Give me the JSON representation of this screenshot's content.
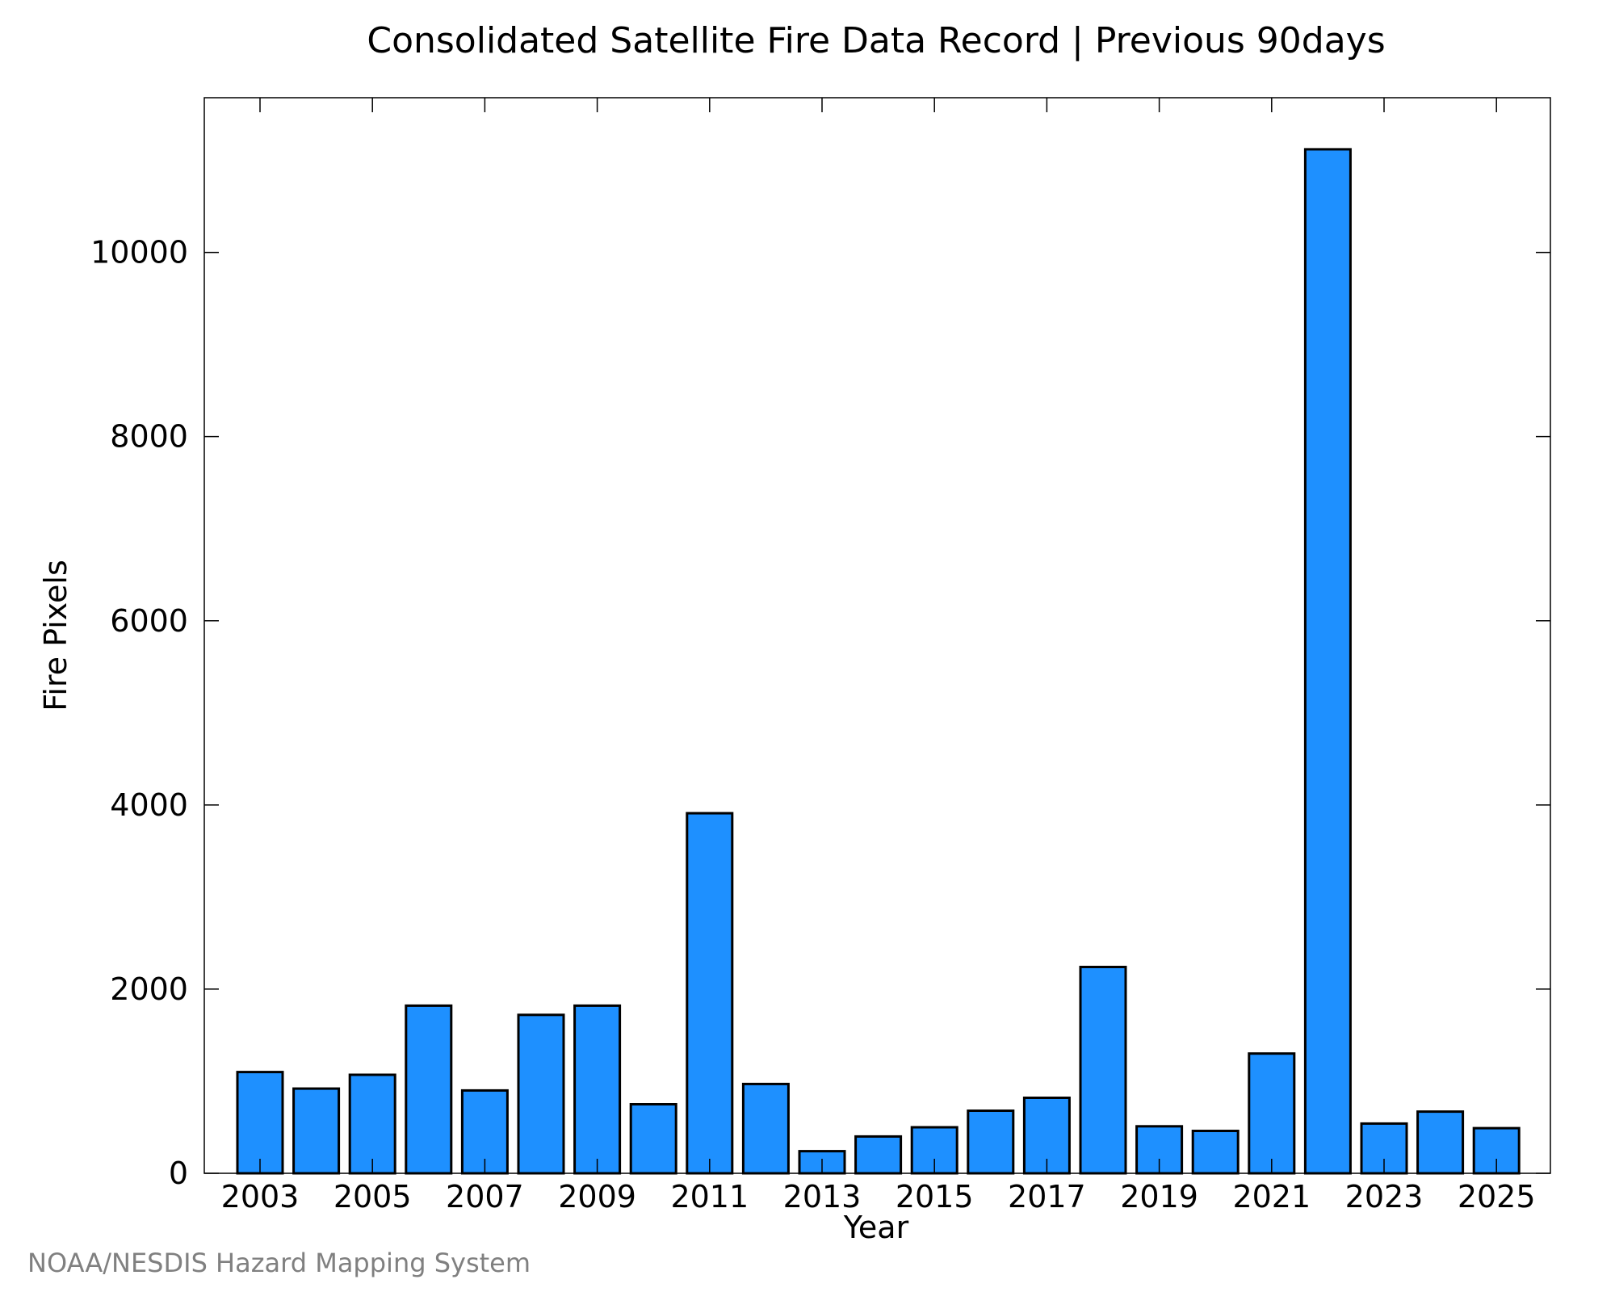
{
  "chart_data": {
    "type": "bar",
    "title": "Consolidated Satellite Fire Data Record | Previous 90days",
    "xlabel": "Year",
    "ylabel": "Fire Pixels",
    "categories": [
      "2003",
      "2004",
      "2005",
      "2006",
      "2007",
      "2008",
      "2009",
      "2010",
      "2011",
      "2012",
      "2013",
      "2014",
      "2015",
      "2016",
      "2017",
      "2018",
      "2019",
      "2020",
      "2021",
      "2022",
      "2023",
      "2024",
      "2025"
    ],
    "values": [
      1100,
      920,
      1070,
      1820,
      900,
      1720,
      1820,
      750,
      3910,
      970,
      240,
      400,
      500,
      680,
      820,
      2240,
      510,
      460,
      1300,
      11120,
      540,
      670,
      490
    ],
    "x_tick_labels": [
      "2003",
      "2005",
      "2007",
      "2009",
      "2011",
      "2013",
      "2015",
      "2017",
      "2019",
      "2021",
      "2023",
      "2025"
    ],
    "y_tick_labels": [
      "0",
      "2000",
      "4000",
      "6000",
      "8000",
      "10000"
    ],
    "y_ticks": [
      0,
      2000,
      4000,
      6000,
      8000,
      10000
    ],
    "ylim": [
      0,
      11680
    ],
    "grid": false,
    "bar_color": "#1e90ff",
    "credit": "NOAA/NESDIS Hazard Mapping System"
  }
}
